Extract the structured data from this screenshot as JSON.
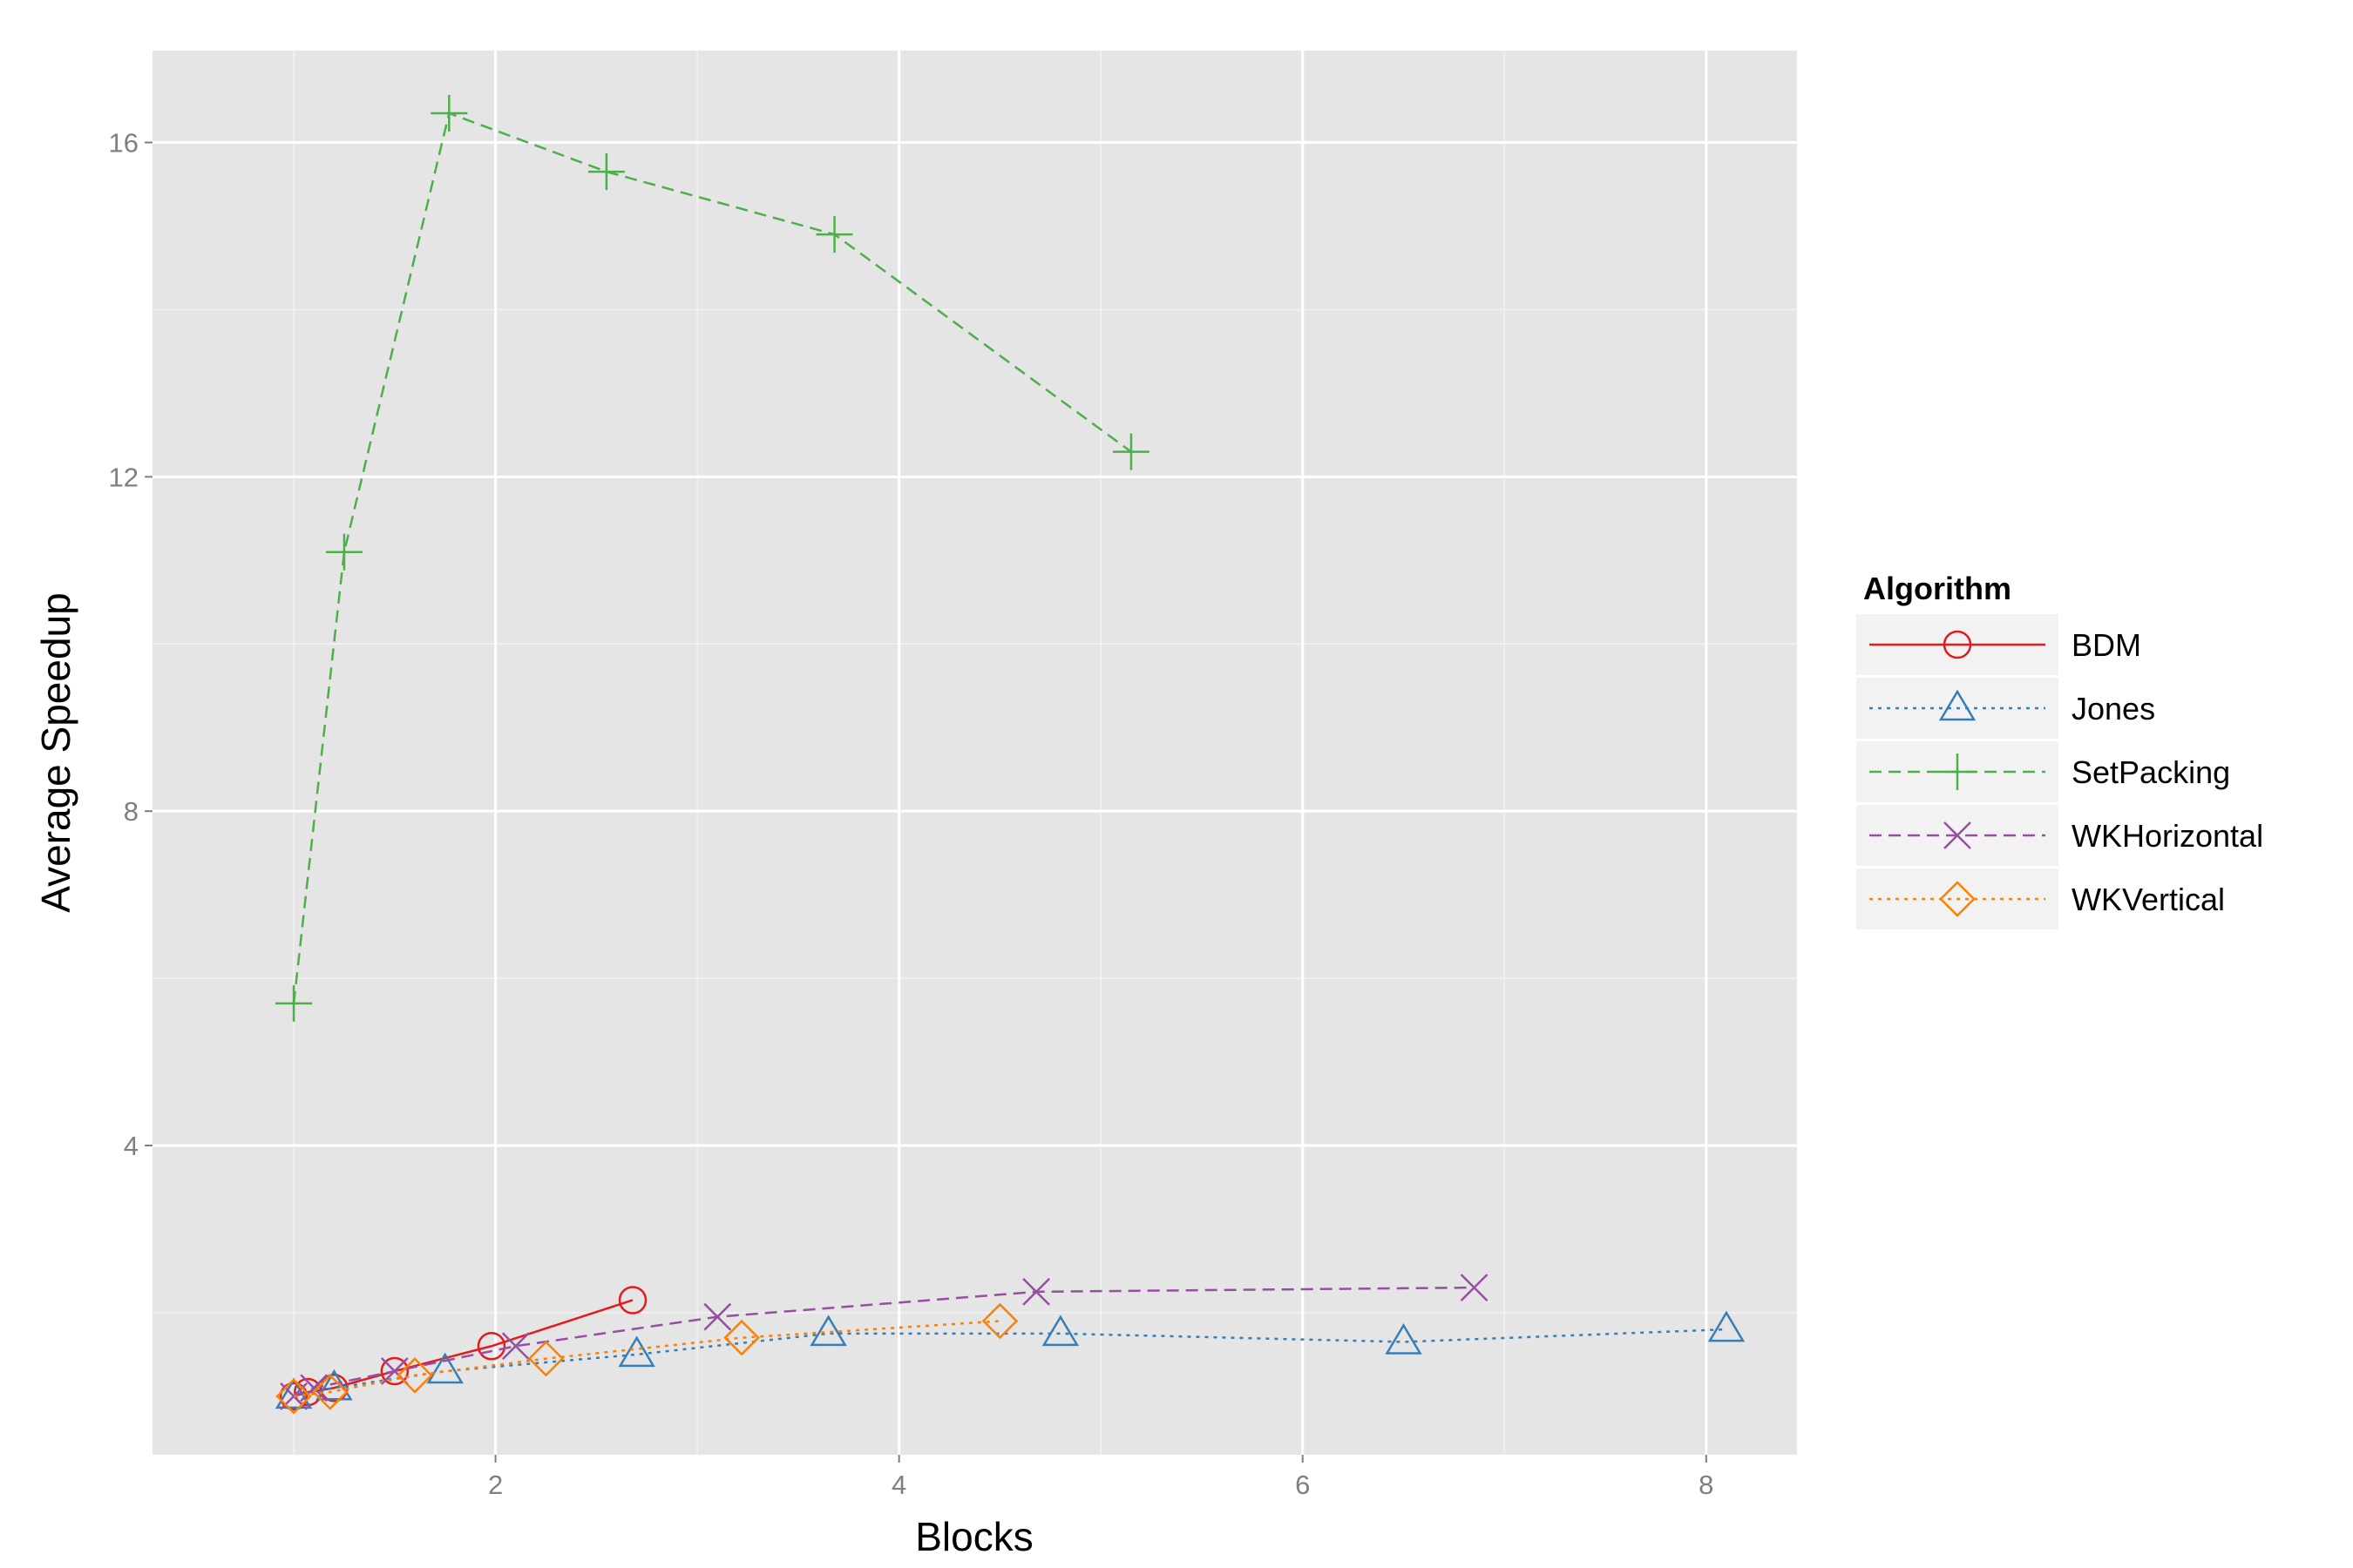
{
  "chart_data": {
    "type": "line",
    "xlabel": "Blocks",
    "ylabel": "Average Speedup",
    "xlim": [
      0.3,
      8.45
    ],
    "ylim": [
      0.3,
      17.1
    ],
    "xticks": [
      2,
      4,
      6,
      8
    ],
    "yticks": [
      4,
      8,
      12,
      16
    ],
    "grid": true,
    "legend": {
      "title": "Algorithm",
      "position": "right"
    },
    "series": [
      {
        "name": "BDM",
        "color": "#e41a1c",
        "dash": "solid",
        "marker": "circle",
        "x": [
          1.0,
          1.07,
          1.2,
          1.5,
          1.98,
          2.68
        ],
        "y": [
          1.0,
          1.05,
          1.1,
          1.3,
          1.6,
          2.15
        ]
      },
      {
        "name": "Jones",
        "color": "#377eb8",
        "dash": "dotted",
        "marker": "triangle",
        "x": [
          1.0,
          1.2,
          1.75,
          2.7,
          3.65,
          4.8,
          6.5,
          8.1
        ],
        "y": [
          1.0,
          1.1,
          1.3,
          1.5,
          1.75,
          1.75,
          1.65,
          1.8
        ]
      },
      {
        "name": "SetPacking",
        "color": "#4daf4a",
        "dash": "dashed",
        "marker": "plus",
        "x": [
          1.0,
          1.25,
          1.77,
          2.55,
          3.68,
          5.15
        ],
        "y": [
          5.7,
          11.1,
          16.35,
          15.65,
          14.9,
          12.3
        ]
      },
      {
        "name": "WKHorizontal",
        "color": "#984ea3",
        "dash": "dashed",
        "marker": "x",
        "x": [
          1.0,
          1.1,
          1.5,
          2.1,
          3.1,
          4.68,
          6.85
        ],
        "y": [
          1.0,
          1.1,
          1.3,
          1.6,
          1.95,
          2.25,
          2.3
        ]
      },
      {
        "name": "WKVertical",
        "color": "#ff7f00",
        "dash": "dotted",
        "marker": "diamond",
        "x": [
          1.0,
          1.18,
          1.6,
          2.25,
          3.22,
          4.5
        ],
        "y": [
          1.0,
          1.05,
          1.25,
          1.45,
          1.7,
          1.9
        ]
      }
    ]
  }
}
